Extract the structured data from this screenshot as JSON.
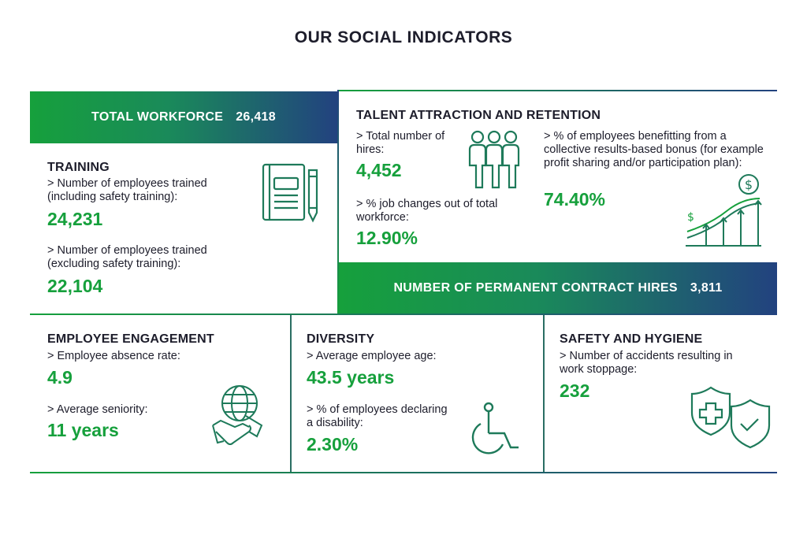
{
  "title": "OUR SOCIAL INDICATORS",
  "workforce": {
    "label": "TOTAL WORKFORCE",
    "value": "26,418"
  },
  "training": {
    "heading": "TRAINING",
    "item1_label": "> Number of employees trained (including safety training):",
    "item1_value": "24,231",
    "item2_label": "> Number of employees trained (excluding safety training):",
    "item2_value": "22,104",
    "icon": "notebook-pen-icon"
  },
  "talent": {
    "heading": "TALENT ATTRACTION AND RETENTION",
    "hires_label": "> Total number of hires:",
    "hires_value": "4,452",
    "job_changes_label": "> % job changes out of total workforce:",
    "job_changes_value": "12.90%",
    "bonus_label": "> % of employees benefitting from a collective results-based bonus (for example profit sharing and/or participation plan):",
    "bonus_value": "74.40%",
    "icons": [
      "people-group-icon",
      "growth-chart-icon"
    ]
  },
  "permanent": {
    "label": "NUMBER OF PERMANENT CONTRACT HIRES",
    "value": "3,811"
  },
  "engagement": {
    "heading": "EMPLOYEE ENGAGEMENT",
    "absence_label": "> Employee absence rate:",
    "absence_value": "4.9",
    "seniority_label": "> Average seniority:",
    "seniority_value": "11 years",
    "icon": "globe-handshake-icon"
  },
  "diversity": {
    "heading": "DIVERSITY",
    "age_label": "> Average employee age:",
    "age_value": "43.5 years",
    "disability_label": "> % of employees declaring a disability:",
    "disability_value": "2.30%",
    "icon": "wheelchair-icon"
  },
  "safety": {
    "heading": "SAFETY AND HYGIENE",
    "accidents_label": "> Number of accidents resulting in work stoppage:",
    "accidents_value": "232",
    "icon": "shields-icon"
  },
  "colors": {
    "green": "#16a03c",
    "navy": "#22427f",
    "text": "#1d1d2b"
  }
}
